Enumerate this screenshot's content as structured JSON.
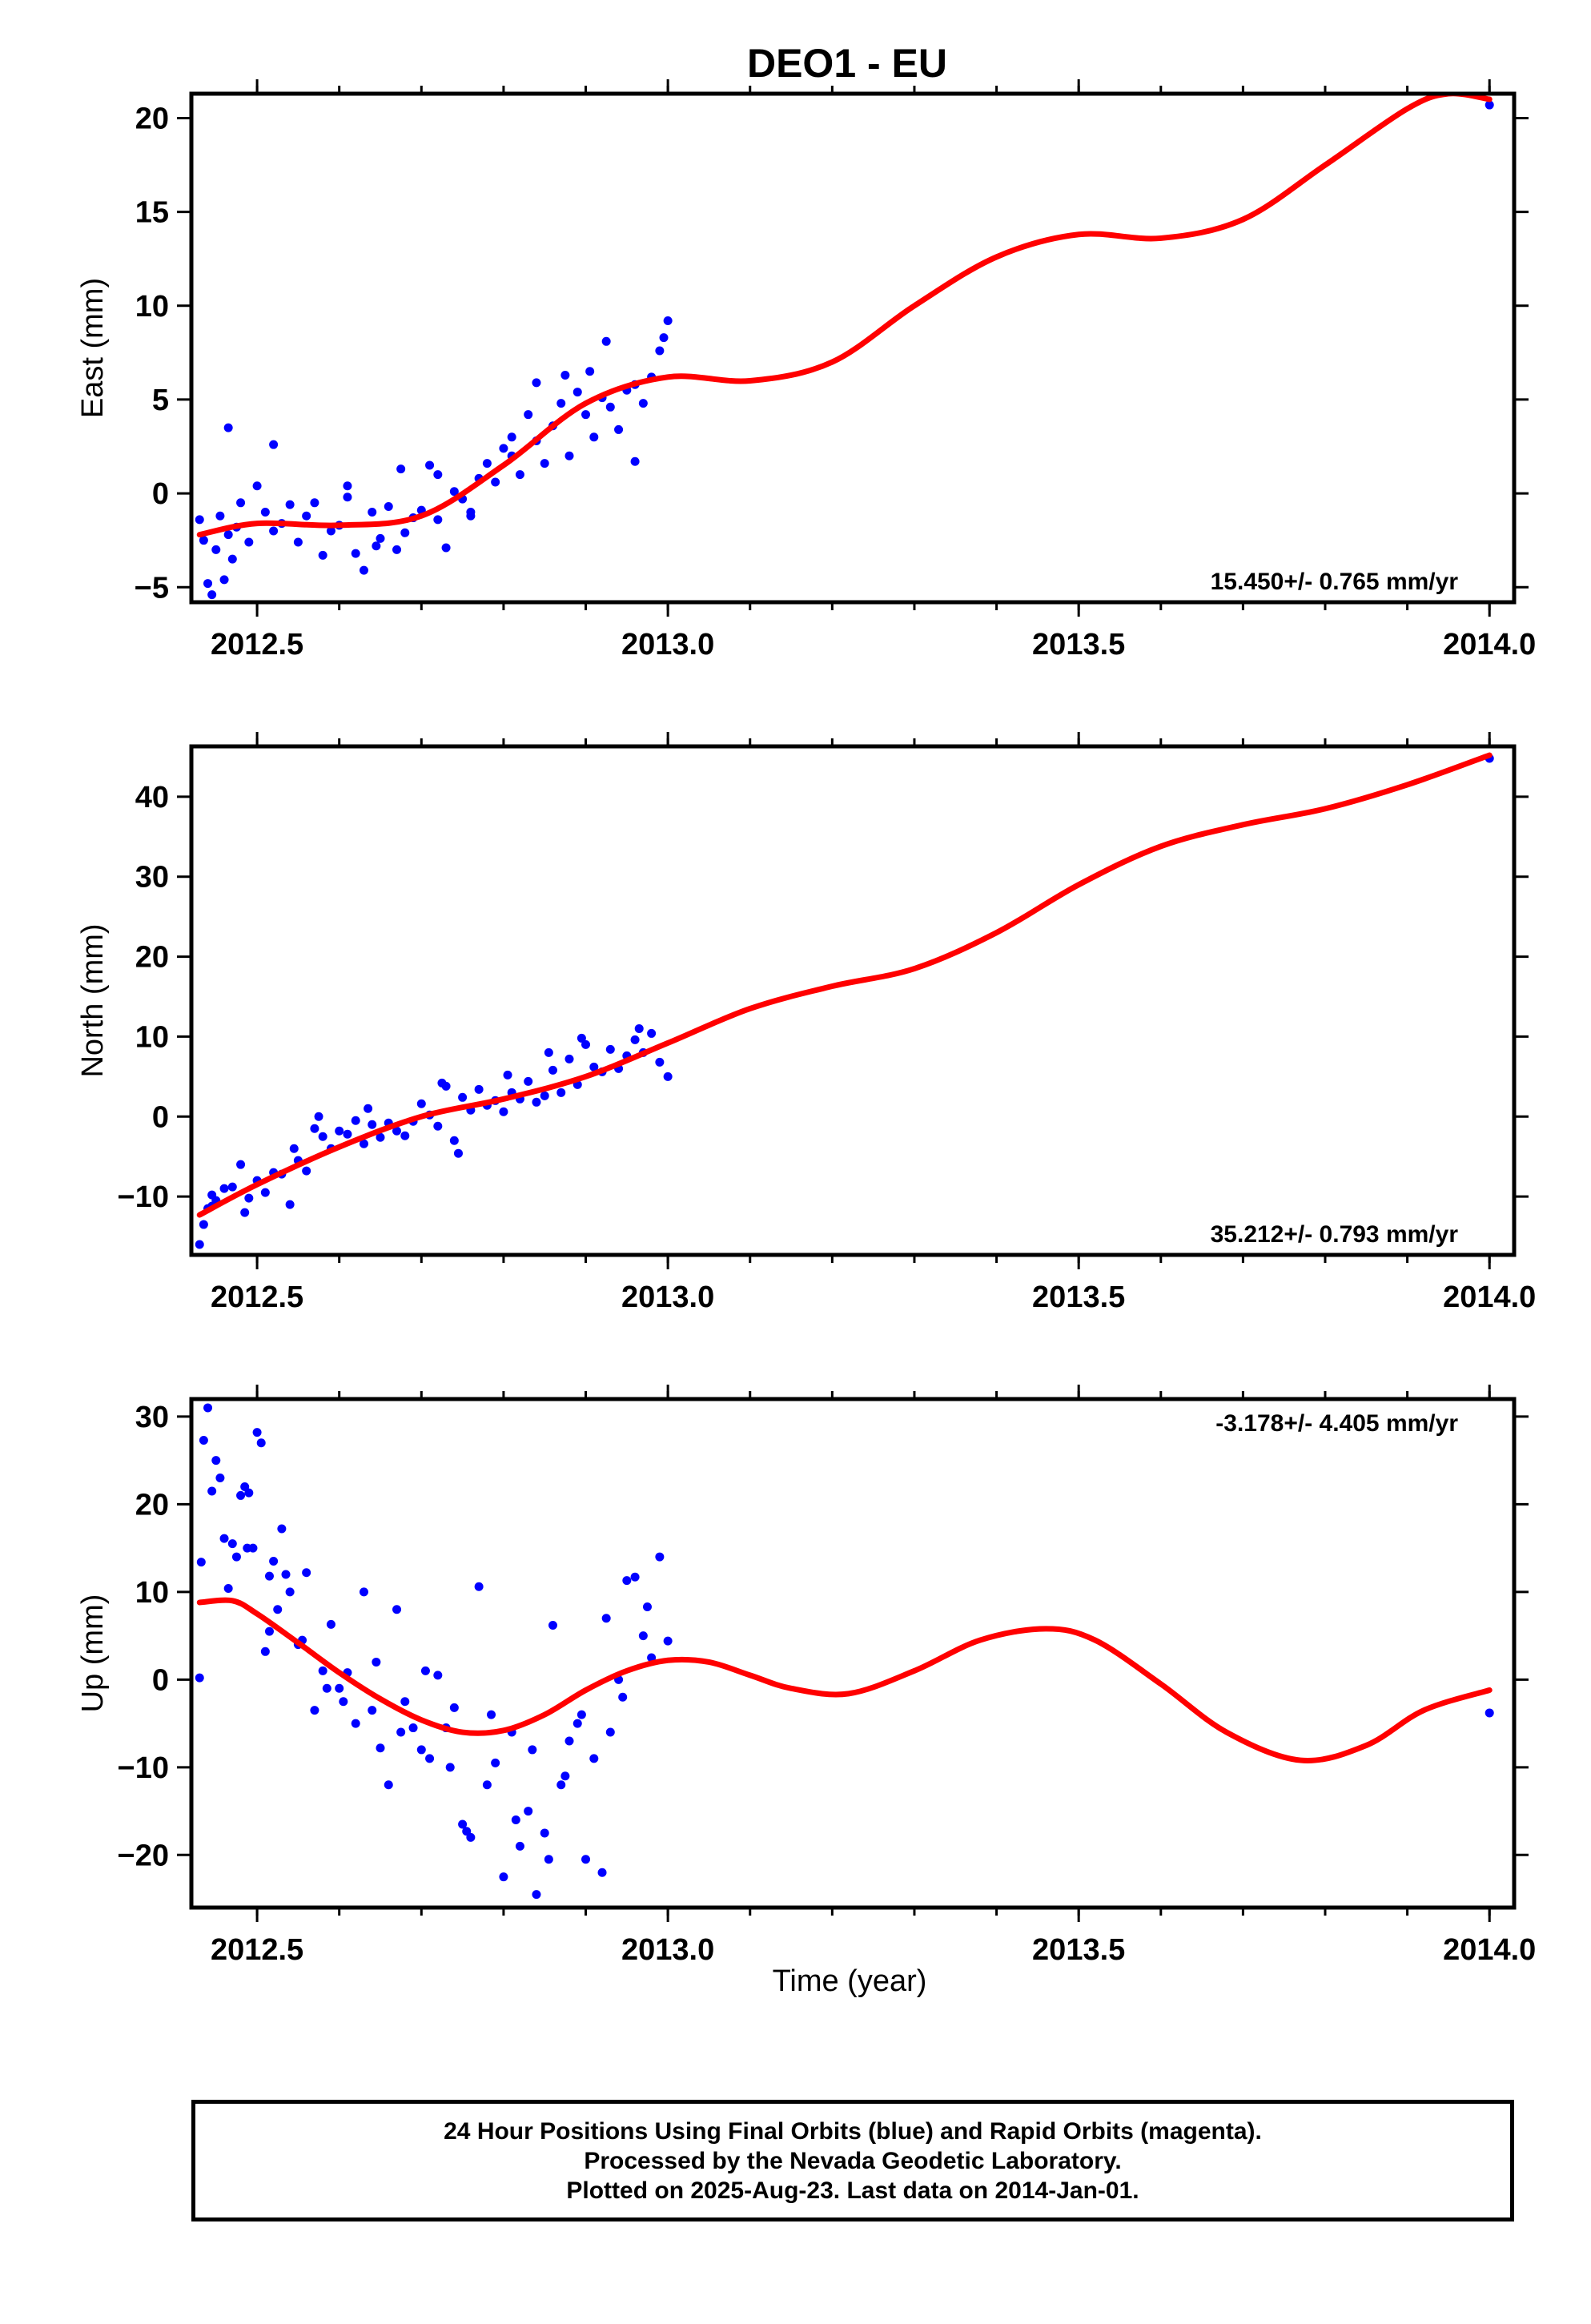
{
  "chart_data": {
    "type": "scatter",
    "title": "DEO1 - EU",
    "xlabel": "Time (year)",
    "xlim": [
      2012.42,
      2014.03
    ],
    "xticks": [
      2012.5,
      2013.0,
      2013.5,
      2014.0
    ],
    "xtick_labels": [
      "2012.5",
      "2013.0",
      "2013.5",
      "2014.0"
    ],
    "series_colors": {
      "observations": "#0000ff",
      "fit": "#ff0000"
    },
    "panels": [
      {
        "name": "east",
        "ylabel": "East (mm)",
        "ylim": [
          -5.8,
          21.3
        ],
        "yticks": [
          -5,
          0,
          5,
          10,
          15,
          20
        ],
        "ytick_labels": [
          "−5",
          "0",
          "5",
          "10",
          "15",
          "20"
        ],
        "rate_label": "15.450+/- 0.765 mm/yr",
        "rate_position": "bottom-right",
        "fit": {
          "x": [
            2012.43,
            2012.5,
            2012.6,
            2012.7,
            2012.8,
            2012.9,
            2013.0,
            2013.1,
            2013.2,
            2013.3,
            2013.4,
            2013.5,
            2013.6,
            2013.7,
            2013.8,
            2013.9,
            2013.95,
            2014.0
          ],
          "y": [
            -2.2,
            -1.6,
            -1.7,
            -1.2,
            1.5,
            4.8,
            6.2,
            6.0,
            7.0,
            10.0,
            12.6,
            13.8,
            13.6,
            14.6,
            17.5,
            20.5,
            21.3,
            21.0
          ]
        },
        "points": {
          "x": [
            2012.43,
            2012.435,
            2012.44,
            2012.445,
            2012.45,
            2012.455,
            2012.46,
            2012.465,
            2012.47,
            2012.475,
            2012.48,
            2012.49,
            2012.5,
            2012.51,
            2012.52,
            2012.53,
            2012.54,
            2012.55,
            2012.56,
            2012.57,
            2012.58,
            2012.59,
            2012.6,
            2012.61,
            2012.62,
            2012.63,
            2012.64,
            2012.65,
            2012.66,
            2012.67,
            2012.68,
            2012.69,
            2012.7,
            2012.71,
            2012.72,
            2012.73,
            2012.74,
            2012.75,
            2012.76,
            2012.77,
            2012.78,
            2012.79,
            2012.8,
            2012.81,
            2012.82,
            2012.83,
            2012.84,
            2012.85,
            2012.86,
            2012.87,
            2012.88,
            2012.89,
            2012.9,
            2012.91,
            2012.92,
            2012.93,
            2012.94,
            2012.95,
            2012.96,
            2012.97,
            2012.98,
            2012.99,
            2013.0,
            2014.0,
            2012.465,
            2012.52,
            2012.61,
            2012.645,
            2012.675,
            2012.72,
            2012.76,
            2012.81,
            2012.84,
            2012.875,
            2012.905,
            2012.925,
            2012.96,
            2012.995
          ],
          "y": [
            -1.4,
            -2.5,
            -4.8,
            -5.4,
            -3.0,
            -1.2,
            -4.6,
            -2.2,
            -3.5,
            -1.8,
            -0.5,
            -2.6,
            0.4,
            -1.0,
            -2.0,
            -1.6,
            -0.6,
            -2.6,
            -1.2,
            -0.5,
            -3.3,
            -2.0,
            -1.7,
            -0.2,
            -3.2,
            -4.1,
            -1.0,
            -2.4,
            -0.7,
            -3.0,
            -2.1,
            -1.3,
            -0.9,
            1.5,
            -1.4,
            -2.9,
            0.1,
            -0.3,
            -1.2,
            0.8,
            1.6,
            0.6,
            2.4,
            3.0,
            1.0,
            4.2,
            2.8,
            1.6,
            3.6,
            4.8,
            2.0,
            5.4,
            4.2,
            3.0,
            5.1,
            4.6,
            3.4,
            5.5,
            5.8,
            4.8,
            6.2,
            7.6,
            9.2,
            20.7,
            3.5,
            2.6,
            0.4,
            -2.8,
            1.3,
            1.0,
            -1.0,
            2.0,
            5.9,
            6.3,
            6.5,
            8.1,
            1.7,
            8.3
          ]
        }
      },
      {
        "name": "north",
        "ylabel": "North (mm)",
        "ylim": [
          -17.3,
          46.3
        ],
        "yticks": [
          -10,
          0,
          10,
          20,
          30,
          40
        ],
        "ytick_labels": [
          "−10",
          "0",
          "10",
          "20",
          "30",
          "40"
        ],
        "rate_label": "35.212+/- 0.793 mm/yr",
        "rate_position": "bottom-right",
        "fit": {
          "x": [
            2012.43,
            2012.5,
            2012.6,
            2012.7,
            2012.8,
            2012.9,
            2013.0,
            2013.1,
            2013.2,
            2013.3,
            2013.4,
            2013.5,
            2013.6,
            2013.7,
            2013.8,
            2013.9,
            2014.0
          ],
          "y": [
            -12.3,
            -8.5,
            -3.8,
            0.0,
            2.2,
            5.0,
            9.2,
            13.5,
            16.3,
            18.5,
            23.0,
            29.0,
            33.8,
            36.5,
            38.5,
            41.5,
            45.2
          ]
        },
        "points": {
          "x": [
            2012.43,
            2012.435,
            2012.44,
            2012.445,
            2012.45,
            2012.46,
            2012.47,
            2012.48,
            2012.49,
            2012.5,
            2012.51,
            2012.52,
            2012.53,
            2012.54,
            2012.55,
            2012.56,
            2012.57,
            2012.58,
            2012.59,
            2012.6,
            2012.61,
            2012.62,
            2012.63,
            2012.64,
            2012.65,
            2012.66,
            2012.67,
            2012.68,
            2012.69,
            2012.7,
            2012.71,
            2012.72,
            2012.73,
            2012.74,
            2012.75,
            2012.76,
            2012.77,
            2012.78,
            2012.79,
            2012.8,
            2012.81,
            2012.82,
            2012.83,
            2012.84,
            2012.85,
            2012.86,
            2012.87,
            2012.88,
            2012.89,
            2012.9,
            2012.91,
            2012.92,
            2012.93,
            2012.94,
            2012.95,
            2012.96,
            2012.97,
            2012.98,
            2012.99,
            2013.0,
            2014.0,
            2012.445,
            2012.485,
            2012.545,
            2012.575,
            2012.635,
            2012.725,
            2012.745,
            2012.805,
            2012.855,
            2012.895,
            2012.965
          ],
          "y": [
            -16.0,
            -13.5,
            -11.5,
            -9.8,
            -10.5,
            -9.0,
            -8.8,
            -6.0,
            -10.2,
            -8.0,
            -9.5,
            -7.0,
            -7.2,
            -11.0,
            -5.5,
            -6.8,
            -1.5,
            -2.5,
            -4.0,
            -1.8,
            -2.2,
            -0.5,
            -3.4,
            -1.0,
            -2.6,
            -0.8,
            -1.8,
            -2.4,
            -0.6,
            1.6,
            0.2,
            -1.2,
            3.8,
            -3.0,
            2.4,
            0.8,
            3.4,
            1.4,
            2.0,
            0.6,
            3.0,
            2.2,
            4.4,
            1.8,
            2.6,
            5.8,
            3.0,
            7.2,
            4.0,
            9.0,
            6.2,
            5.6,
            8.4,
            6.0,
            7.6,
            9.6,
            8.0,
            10.4,
            6.8,
            5.0,
            44.8,
            -11.2,
            -12.0,
            -4.0,
            0.0,
            1.0,
            4.2,
            -4.6,
            5.2,
            8.0,
            9.8,
            11.0
          ]
        }
      },
      {
        "name": "up",
        "ylabel": "Up (mm)",
        "ylim": [
          -26.0,
          32.0
        ],
        "yticks": [
          -20,
          -10,
          0,
          10,
          20,
          30
        ],
        "ytick_labels": [
          "−20",
          "−10",
          "0",
          "10",
          "20",
          "30"
        ],
        "rate_label": "-3.178+/- 4.405 mm/yr",
        "rate_position": "top-right",
        "fit": {
          "x": [
            2012.43,
            2012.47,
            2012.5,
            2012.55,
            2012.6,
            2012.65,
            2012.7,
            2012.75,
            2012.8,
            2012.85,
            2012.9,
            2012.95,
            2013.0,
            2013.05,
            2013.1,
            2013.15,
            2013.22,
            2013.3,
            2013.38,
            2013.46,
            2013.52,
            2013.6,
            2013.68,
            2013.77,
            2013.85,
            2013.92,
            2014.0
          ],
          "y": [
            8.8,
            9.0,
            7.5,
            4.2,
            0.8,
            -2.2,
            -4.6,
            -6.0,
            -5.8,
            -4.0,
            -1.2,
            1.0,
            2.2,
            2.0,
            0.5,
            -1.0,
            -1.6,
            1.0,
            4.5,
            5.8,
            4.5,
            -0.5,
            -6.0,
            -9.2,
            -7.5,
            -3.5,
            -1.2
          ]
        },
        "points": {
          "x": [
            2012.43,
            2012.432,
            2012.435,
            2012.44,
            2012.445,
            2012.45,
            2012.455,
            2012.46,
            2012.465,
            2012.47,
            2012.475,
            2012.48,
            2012.485,
            2012.49,
            2012.495,
            2012.5,
            2012.505,
            2012.51,
            2012.515,
            2012.52,
            2012.525,
            2012.53,
            2012.535,
            2012.54,
            2012.55,
            2012.56,
            2012.57,
            2012.58,
            2012.59,
            2012.6,
            2012.61,
            2012.62,
            2012.63,
            2012.64,
            2012.65,
            2012.66,
            2012.67,
            2012.68,
            2012.69,
            2012.7,
            2012.71,
            2012.72,
            2012.73,
            2012.74,
            2012.75,
            2012.76,
            2012.77,
            2012.78,
            2012.79,
            2012.8,
            2012.81,
            2012.82,
            2012.83,
            2012.84,
            2012.85,
            2012.86,
            2012.87,
            2012.88,
            2012.89,
            2012.9,
            2012.91,
            2012.92,
            2012.93,
            2012.94,
            2012.95,
            2012.96,
            2012.97,
            2012.98,
            2012.99,
            2013.0,
            2014.0,
            2012.488,
            2012.515,
            2012.555,
            2012.585,
            2012.605,
            2012.645,
            2012.675,
            2012.705,
            2012.735,
            2012.755,
            2012.785,
            2012.815,
            2012.835,
            2012.855,
            2012.875,
            2012.895,
            2012.925,
            2012.945,
            2012.975
          ],
          "y": [
            0.2,
            13.4,
            27.3,
            31.0,
            21.5,
            25.0,
            23.0,
            16.1,
            10.4,
            15.5,
            14.0,
            21.0,
            22.0,
            21.3,
            15.0,
            28.2,
            27.0,
            3.2,
            5.5,
            13.5,
            8.0,
            17.2,
            12.0,
            10.0,
            4.0,
            12.2,
            -3.5,
            1.0,
            6.3,
            -1.0,
            0.8,
            -5.0,
            10.0,
            -3.5,
            -7.8,
            -12.0,
            8.0,
            -2.5,
            -5.5,
            -8.0,
            -9.0,
            0.5,
            -5.5,
            -3.2,
            -16.5,
            -18.0,
            10.6,
            -12.0,
            -9.5,
            -22.5,
            -6.0,
            -19.0,
            -15.0,
            -24.5,
            -17.5,
            6.2,
            -12.0,
            -7.0,
            -5.0,
            -20.5,
            -9.0,
            -22.0,
            -6.0,
            0.0,
            11.3,
            11.7,
            5.0,
            2.5,
            14.0,
            4.4,
            -3.8,
            15.0,
            11.8,
            4.5,
            -1.0,
            -2.5,
            2.0,
            -6.0,
            1.0,
            -10.0,
            -17.3,
            -4.0,
            -16.0,
            -8.0,
            -20.5,
            -11.0,
            -4.0,
            7.0,
            -2.0,
            8.3
          ]
        }
      }
    ]
  },
  "footer": {
    "line1": "24 Hour Positions Using Final Orbits (blue) and Rapid Orbits (magenta).",
    "line2": "Processed by the Nevada Geodetic Laboratory.",
    "line3": "Plotted on 2025-Aug-23. Last data on 2014-Jan-01."
  }
}
